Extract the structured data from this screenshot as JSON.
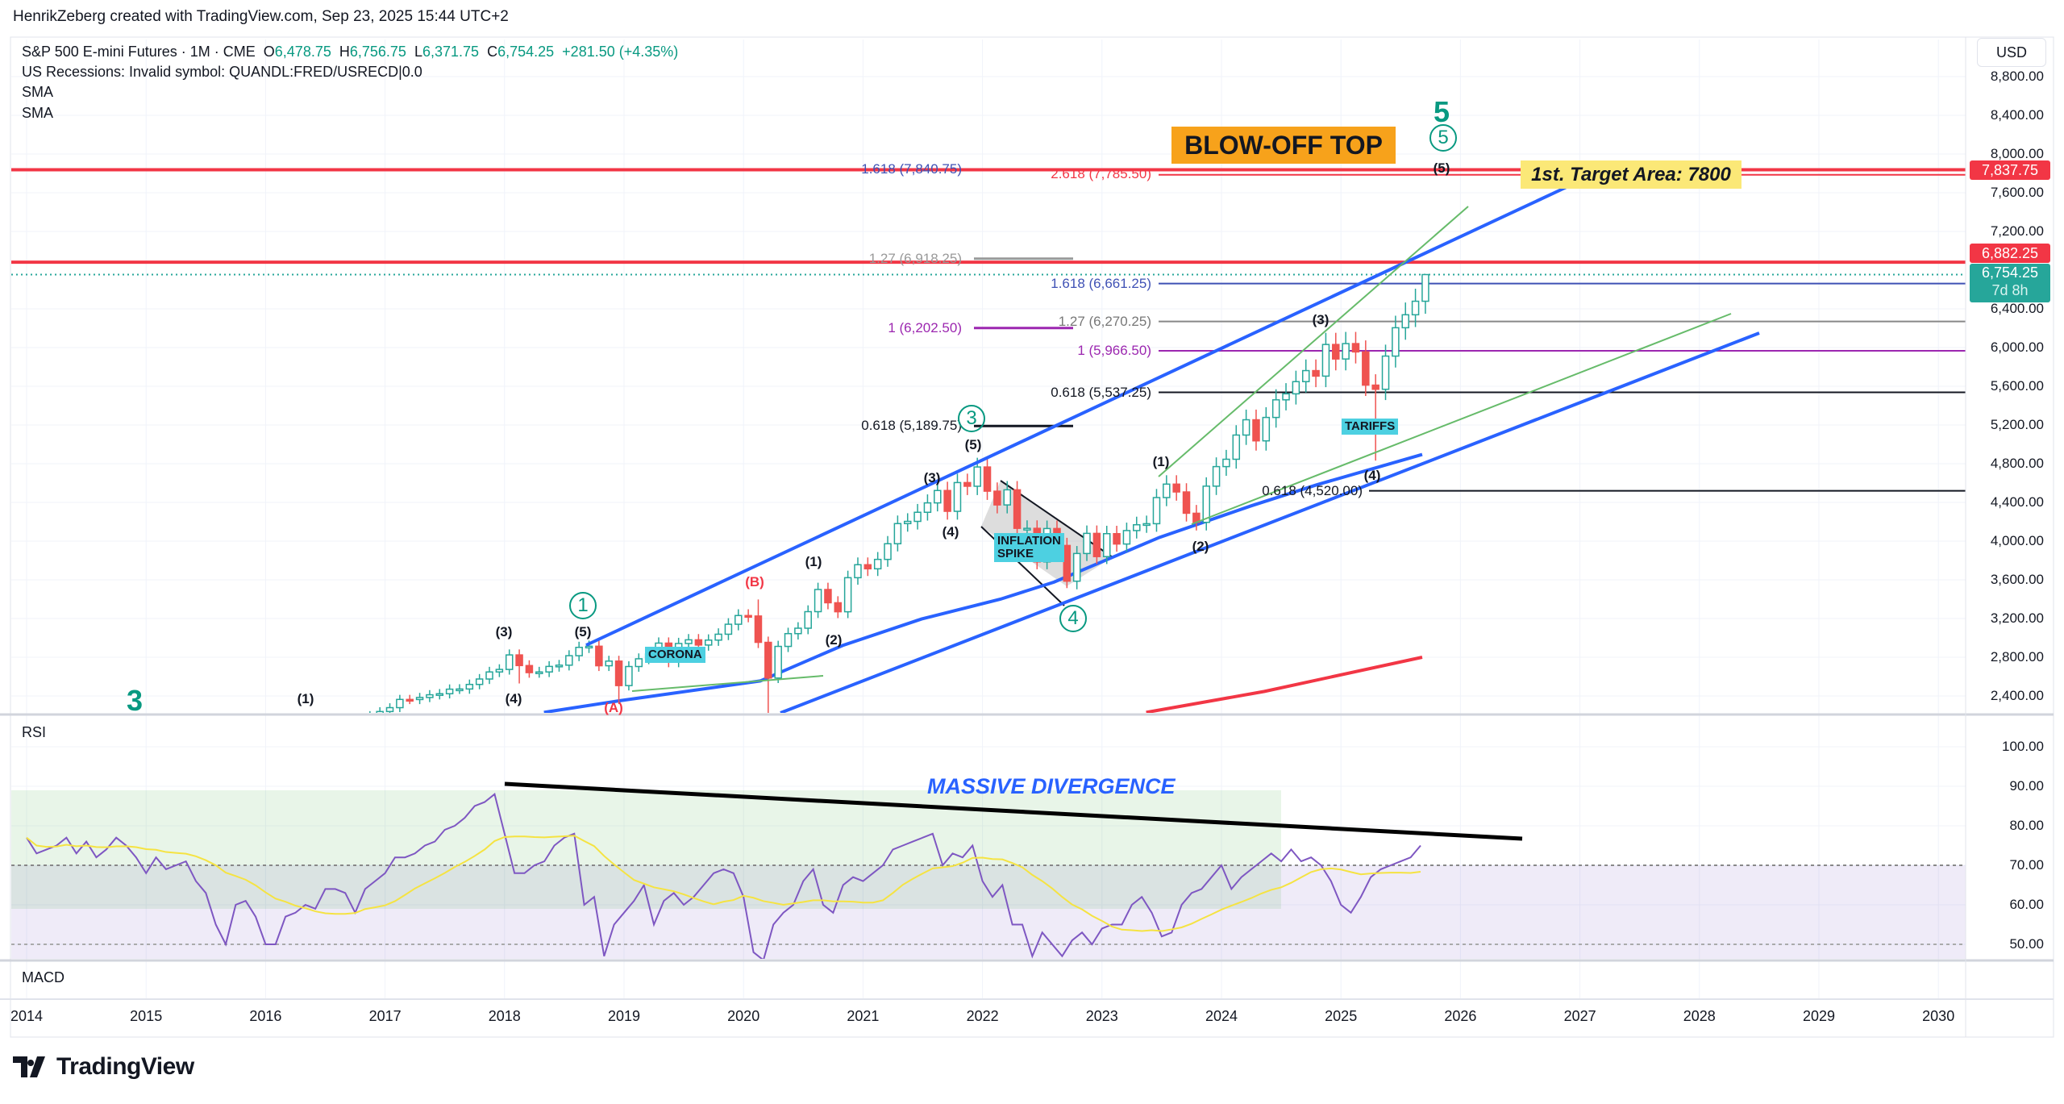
{
  "credit": "HenrikZeberg created with TradingView.com, Sep 23, 2025 15:44 UTC+2",
  "legend": {
    "symbol": "S&P 500 E-mini Futures · 1M · CME",
    "o_label": "O",
    "o": "6,478.75",
    "h_label": "H",
    "h": "6,756.75",
    "l_label": "L",
    "l": "6,371.75",
    "c_label": "C",
    "c": "6,754.25",
    "change": "+281.50 (+4.35%)",
    "recessions": "US Recessions: Invalid symbol: QUANDL:FRED/USRECD|0.0",
    "sma1": "SMA",
    "sma2": "SMA"
  },
  "currency": "USD",
  "price_labels": {
    "target": "7,837.75",
    "resistance": "6,882.25",
    "last": "6,754.25",
    "countdown": "7d 8h"
  },
  "annotations": {
    "blowoff": "BLOW-OFF TOP",
    "target": "1st. Target Area: 7800",
    "corona": "CORONA",
    "inflation1": "INFLATION",
    "inflation2": "SPIKE",
    "tariffs": "TARIFFS",
    "divergence": "MASSIVE DIVERGENCE",
    "big3": "3",
    "big5": "5",
    "c1": "1",
    "c3": "3",
    "c4": "4",
    "c5": "5",
    "w1a": "(1)",
    "w3a": "(3)",
    "w4a": "(4)",
    "w5a": "(5)",
    "wA": "(A)",
    "wB": "(B)",
    "w1b": "(1)",
    "w2b": "(2)",
    "w3b": "(3)",
    "w4b": "(4)",
    "w5b": "(5)",
    "w1c": "(1)",
    "w2c": "(2)",
    "w3c": "(3)",
    "w4c": "(4)",
    "w5c": "(5)"
  },
  "fibs": {
    "f1": "1.618 (7,840.75)",
    "f2": "2.618 (7,785.50)",
    "f3": "1.27 (6,918.25)",
    "f4": "1.618 (6,661.25)",
    "f5": "1 (6,202.50)",
    "f6": "1.27 (6,270.25)",
    "f7": "1 (5,966.50)",
    "f8": "0.618 (5,537.25)",
    "f9": "0.618 (5,189.75)",
    "f10": "0.618 (4,520.00)"
  },
  "panes": {
    "rsi": "RSI",
    "macd": "MACD"
  },
  "logo": "TradingView",
  "colors": {
    "up": "#26a69a",
    "down": "#ef5350",
    "channel": "#2962ff",
    "sma_long": "#f23645",
    "rsi": "#7e57c2",
    "rsi_ma": "#f5e342",
    "fib_red": "#f23645"
  },
  "chart_data": [
    {
      "type": "candlestick",
      "title": "S&P 500 E-mini Futures · 1M · CME",
      "start": "2016-01",
      "first_open": 2040,
      "closes": [
        1940,
        1932,
        2060,
        2065,
        2097,
        2099,
        2174,
        2171,
        2168,
        2126,
        2199,
        2239,
        2279,
        2364,
        2363,
        2384,
        2412,
        2423,
        2470,
        2472,
        2519,
        2575,
        2648,
        2674,
        2824,
        2714,
        2641,
        2648,
        2705,
        2718,
        2816,
        2902,
        2914,
        2712,
        2760,
        2507,
        2704,
        2784,
        2834,
        2946,
        2752,
        2942,
        2980,
        2926,
        2977,
        3038,
        3141,
        3231,
        3226,
        2954,
        2585,
        2912,
        3044,
        3100,
        3271,
        3500,
        3363,
        3270,
        3622,
        3756,
        3714,
        3811,
        3973,
        4181,
        4204,
        4298,
        4395,
        4523,
        4308,
        4605,
        4567,
        4766,
        4516,
        4374,
        4530,
        4132,
        4132,
        3785,
        4130,
        3955,
        3586,
        3872,
        4080,
        3840,
        4077,
        3970,
        4109,
        4169,
        4180,
        4450,
        4589,
        4508,
        4288,
        4194,
        4568,
        4770,
        4846,
        5096,
        5254,
        5036,
        5278,
        5460,
        5522,
        5648,
        5762,
        5705,
        6032,
        5882,
        6041,
        5955,
        5612,
        5569,
        5912,
        6205,
        6339,
        6478.75,
        6754.25
      ],
      "low_overrides": {
        "2018-02": 2529,
        "2018-12": 2316,
        "2020-03": 2174,
        "2022-10": 3502,
        "2025-04": 4832
      },
      "high_overrides": {
        "2020-02": 3397,
        "2025-09": 6756.75
      },
      "yaxis": {
        "ticks": [
          8800,
          8400,
          8000,
          7600,
          7200,
          6400,
          6000,
          5600,
          5200,
          4800,
          4400,
          4000,
          3600,
          3200,
          2800,
          2400
        ],
        "range": [
          2330,
          9100
        ]
      },
      "xaxis": {
        "ticks": [
          "2014",
          "2015",
          "2016",
          "2017",
          "2018",
          "2019",
          "2020",
          "2021",
          "2022",
          "2023",
          "2024",
          "2025",
          "2026",
          "2027",
          "2028",
          "2029",
          "2030"
        ]
      },
      "sma_short": [
        [
          2018.33,
          2230
        ],
        [
          2018.96,
          2350
        ],
        [
          2020.14,
          2555
        ],
        [
          2020.83,
          2922
        ],
        [
          2021.49,
          3195
        ],
        [
          2022.15,
          3400
        ],
        [
          2022.6,
          3577
        ],
        [
          2023.48,
          4038
        ],
        [
          2024.25,
          4365
        ],
        [
          2024.8,
          4583
        ],
        [
          2025.68,
          4895
        ]
      ],
      "sma_long": [
        [
          2023.37,
          2230
        ],
        [
          2024.36,
          2447
        ],
        [
          2025.68,
          2800
        ]
      ],
      "hlines": [
        7837.75,
        6882.25,
        6754.25,
        6661.25,
        6270.25,
        5966.5,
        5537.25,
        4520,
        7785.5
      ]
    },
    {
      "type": "line",
      "title": "RSI",
      "start": "2014-01",
      "ylim": [
        45,
        100
      ],
      "ticks": [
        100,
        90,
        80,
        70,
        60,
        50
      ],
      "bands": [
        70,
        50
      ],
      "values": [
        77,
        73,
        74,
        75,
        77,
        73,
        76,
        72,
        74,
        77,
        75,
        72,
        68,
        72,
        69,
        70,
        71,
        66,
        63,
        55,
        50,
        60,
        61,
        57,
        50,
        50,
        57,
        58,
        60,
        59,
        64,
        64,
        63,
        58,
        64,
        66,
        68,
        72,
        72,
        73,
        75,
        76,
        79,
        80,
        82,
        85,
        86,
        88,
        78,
        68,
        68,
        70,
        71,
        75,
        77,
        78,
        60,
        62,
        47,
        55,
        58,
        61,
        65,
        55,
        61,
        63,
        60,
        62,
        65,
        68,
        69,
        68,
        62,
        48,
        46,
        55,
        58,
        60,
        66,
        69,
        60,
        58,
        65,
        67,
        66,
        68,
        70,
        74,
        75,
        76,
        77,
        78,
        70,
        73,
        72,
        75,
        66,
        62,
        65,
        55,
        55,
        47,
        53,
        50,
        47,
        51,
        53,
        50,
        54,
        55,
        55,
        60,
        62,
        58,
        52,
        53,
        60,
        63,
        64,
        67,
        70,
        64,
        67,
        69,
        71,
        73,
        71,
        74,
        71,
        72,
        70,
        66,
        60,
        58,
        62,
        67,
        69,
        70,
        71,
        72,
        75
      ],
      "annotation": "MASSIVE DIVERGENCE"
    }
  ]
}
